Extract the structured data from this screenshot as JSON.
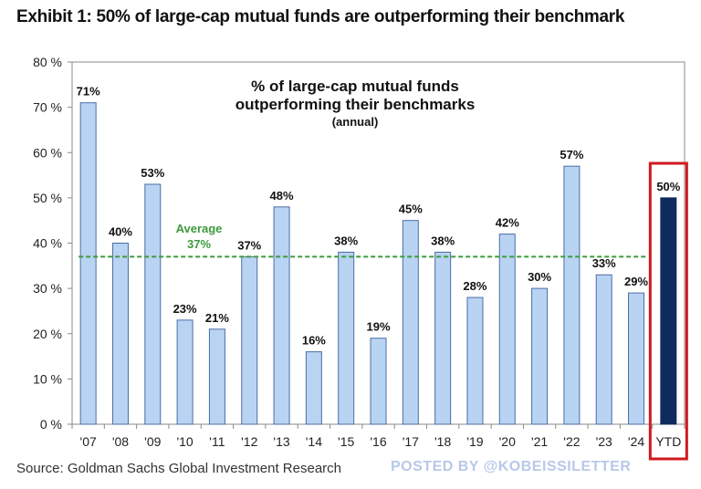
{
  "header": {
    "title": "Exhibit 1: 50% of large-cap mutual funds are outperforming their benchmark"
  },
  "footer": {
    "source": "Source: Goldman Sachs Global Investment Research",
    "watermark": "POSTED BY @KOBEISSILETTER"
  },
  "colors": {
    "bar_fill": "#b9d3f2",
    "bar_stroke": "#4a6fa5",
    "highlight_fill": "#0f2b5e",
    "highlight_box": "#d0191f",
    "average_line": "#3c9a3c",
    "axis": "#555555"
  },
  "chart_data": {
    "type": "bar",
    "title": "% of large-cap mutual funds",
    "title_line2": "outperforming their benchmarks",
    "subtitle": "(annual)",
    "xlabel": "",
    "ylabel": "",
    "ylim": [
      0,
      80
    ],
    "yticks": [
      0,
      10,
      20,
      30,
      40,
      50,
      60,
      70,
      80
    ],
    "ytick_labels": [
      "0 %",
      "10 %",
      "20 %",
      "30 %",
      "40 %",
      "50 %",
      "60 %",
      "70 %",
      "80 %"
    ],
    "grid": false,
    "categories": [
      "'07",
      "'08",
      "'09",
      "'10",
      "'11",
      "'12",
      "'13",
      "'14",
      "'15",
      "'16",
      "'17",
      "'18",
      "'19",
      "'20",
      "'21",
      "'22",
      "'23",
      "'24",
      "YTD"
    ],
    "values": [
      71,
      40,
      53,
      23,
      21,
      37,
      48,
      16,
      38,
      19,
      45,
      38,
      28,
      42,
      30,
      57,
      33,
      29,
      50
    ],
    "value_labels": [
      "71%",
      "40%",
      "53%",
      "23%",
      "21%",
      "37%",
      "48%",
      "16%",
      "38%",
      "19%",
      "45%",
      "38%",
      "28%",
      "42%",
      "30%",
      "57%",
      "33%",
      "29%",
      "50%"
    ],
    "highlight_index": 18,
    "average": {
      "value": 37,
      "label": "Average",
      "value_label": "37%"
    }
  }
}
